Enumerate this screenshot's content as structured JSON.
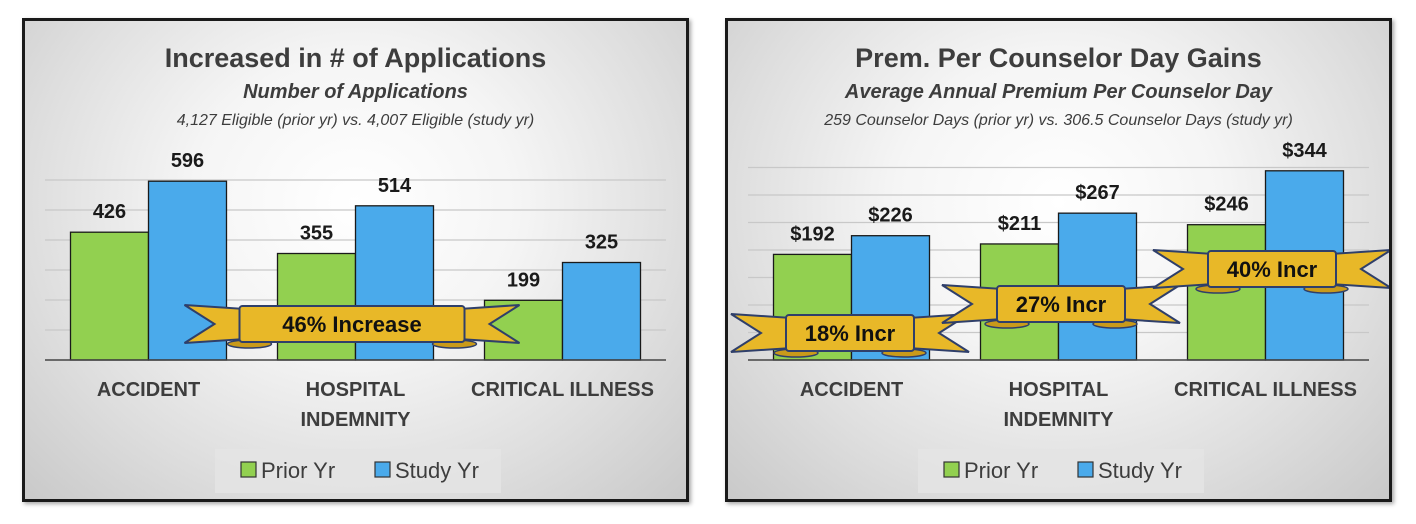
{
  "colors": {
    "prior": "#92d050",
    "study": "#4aaaeb",
    "ribbon": "#e8b828",
    "bar_stroke": "#1a1a1a"
  },
  "chart_data": [
    {
      "type": "bar",
      "title": "Increased in # of Applications",
      "subtitle": "Number of Applications",
      "note": "4,127 Eligible (prior yr) vs. 4,007 Eligible (study yr)",
      "categories": [
        "ACCIDENT",
        "HOSPITAL\nINDEMNITY",
        "CRITICAL ILLNESS"
      ],
      "series": [
        {
          "name": "Prior Yr",
          "values": [
            426,
            355,
            199
          ],
          "labels": [
            "426",
            "355",
            "199"
          ]
        },
        {
          "name": "Study Yr",
          "values": [
            596,
            514,
            325
          ],
          "labels": [
            "596",
            "514",
            "325"
          ]
        }
      ],
      "ylim": [
        0,
        700
      ],
      "grid": true,
      "legend": "bottom",
      "annotations": [
        {
          "text": "46% Increase",
          "category_span": [
            0,
            2
          ]
        }
      ]
    },
    {
      "type": "bar",
      "title": "Prem. Per Counselor Day Gains",
      "subtitle": "Average Annual Premium Per Counselor Day",
      "note": "259 Counselor Days (prior yr) vs. 306.5 Counselor Days (study yr)",
      "categories": [
        "ACCIDENT",
        "HOSPITAL\nINDEMNITY",
        "CRITICAL ILLNESS"
      ],
      "series": [
        {
          "name": "Prior Yr",
          "values": [
            192,
            211,
            246
          ],
          "labels": [
            "$192",
            "$211",
            "$246"
          ]
        },
        {
          "name": "Study Yr",
          "values": [
            226,
            267,
            344
          ],
          "labels": [
            "$226",
            "$267",
            "$344"
          ]
        }
      ],
      "ylim": [
        0,
        400
      ],
      "grid": true,
      "legend": "bottom",
      "annotations": [
        {
          "text": "18% Incr",
          "category": 0
        },
        {
          "text": "27% Incr",
          "category": 1
        },
        {
          "text": "40% Incr",
          "category": 2
        }
      ]
    }
  ]
}
